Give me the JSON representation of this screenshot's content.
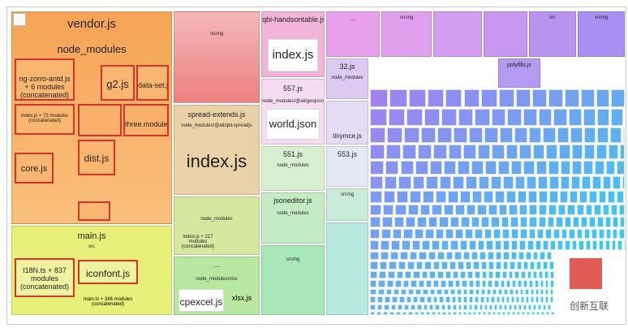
{
  "vendor": {
    "title": "vendor.js",
    "modules": "node_modules",
    "zorro": "ng-zorro-antd.js + 6 modules (concatenated)",
    "g2": "g2.js",
    "dataset": "data-set.js",
    "index73": "index.js + 73 modules (concatenated)",
    "three": "three.module.js",
    "core": "core.js",
    "dist": "dist.js"
  },
  "main": {
    "title": "main.js",
    "src": "src",
    "i18n": "I18N.ts + 837 modules (concatenated)",
    "iconfont": "iconfont.js",
    "maints": "main.ts + 346 modules (concatenated)"
  },
  "col2": {
    "srcng": "src/ng",
    "spread": "spread-extends.js",
    "spreadpath": "node_modules/@ali/qbi-spreadjs",
    "index": "index.js",
    "modules": "node_modules",
    "index217": "index.js + 217 modules (concatenated)",
    "dots": "...",
    "xlsxpath": "node_modules/xlsx",
    "cpexcel": "cpexcel.js",
    "xlsx": "xlsx.js"
  },
  "col3": {
    "handson": "qbi-handsontable.js",
    "index": "index.js",
    "f557": "557.js",
    "geojson": "node_modules/@ali/geojson",
    "world": "world.json",
    "f551": "551.js",
    "modules551": "node_modules",
    "jsoneditor": "jsoneditor.js",
    "modulesje": "node_modules",
    "srcng": "src/ng"
  },
  "col4": {
    "f32": "32.js",
    "modules": "node_modules",
    "tinymce": "tinymce.js",
    "f553": "553.js",
    "srcng": "src/ng"
  },
  "top": {
    "dots": "...",
    "srcng": "src/ng",
    "polyfills": "polyfills.js",
    "src": "src",
    "srcng2": "src/ng"
  },
  "watermark": "创新互联"
}
